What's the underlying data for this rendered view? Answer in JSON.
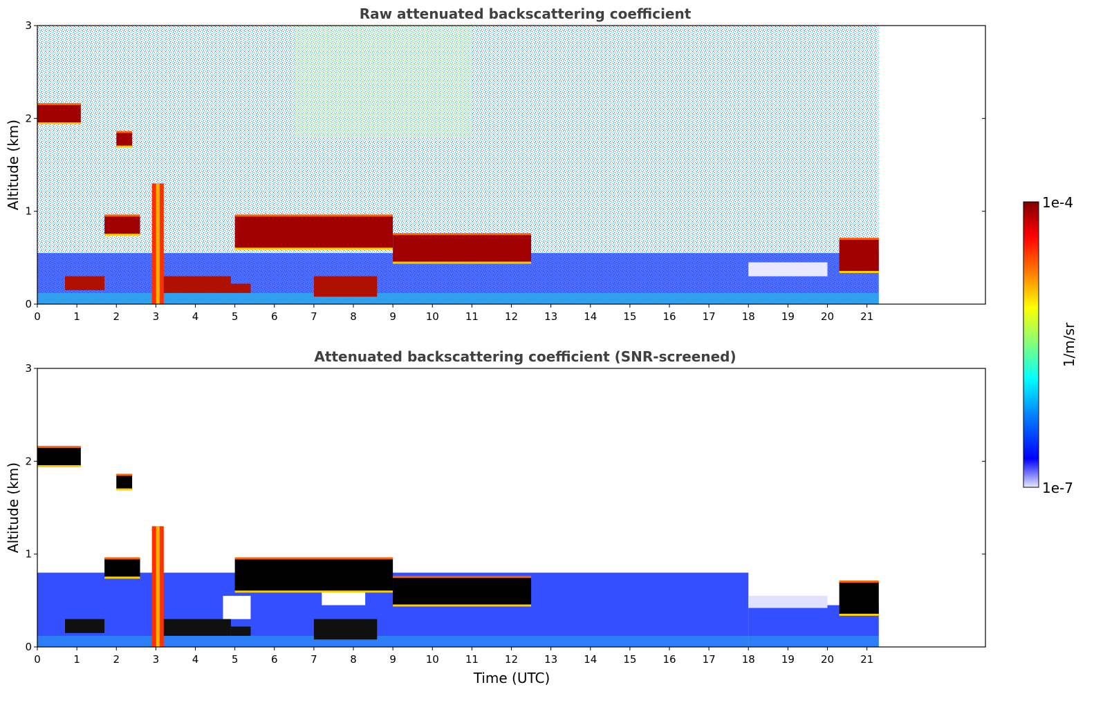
{
  "chart_data": [
    {
      "type": "heatmap",
      "title": "Raw attenuated backscattering coefficient",
      "xlabel": "",
      "ylabel": "Altitude (km)",
      "xlim": [
        0,
        24
      ],
      "ylim": [
        0,
        3
      ],
      "data_extent_x": [
        0,
        21.3
      ],
      "xticks": [
        "0",
        "1",
        "2",
        "3",
        "4",
        "5",
        "6",
        "7",
        "8",
        "9",
        "10",
        "11",
        "12",
        "13",
        "14",
        "15",
        "16",
        "17",
        "18",
        "19",
        "20",
        "21"
      ],
      "yticks": [
        "0",
        "1",
        "2",
        "3"
      ],
      "cloud_layers": [
        {
          "t0": 0.0,
          "t1": 1.1,
          "base_km": 1.95,
          "top_km": 2.15
        },
        {
          "t0": 2.0,
          "t1": 2.4,
          "base_km": 1.7,
          "top_km": 1.85
        },
        {
          "t0": 1.7,
          "t1": 2.6,
          "base_km": 0.75,
          "top_km": 0.95
        },
        {
          "t0": 2.9,
          "t1": 3.2,
          "base_km": 0.0,
          "top_km": 1.3
        },
        {
          "t0": 5.0,
          "t1": 9.0,
          "base_km": 0.6,
          "top_km": 0.95
        },
        {
          "t0": 9.0,
          "t1": 12.5,
          "base_km": 0.45,
          "top_km": 0.75
        },
        {
          "t0": 20.3,
          "t1": 21.3,
          "base_km": 0.35,
          "top_km": 0.7
        }
      ]
    },
    {
      "type": "heatmap",
      "title": "Attenuated backscattering coefficient (SNR-screened)",
      "xlabel": "Time (UTC)",
      "ylabel": "Altitude (km)",
      "xlim": [
        0,
        24
      ],
      "ylim": [
        0,
        3
      ],
      "data_extent_x": [
        0,
        21.3
      ],
      "xticks": [
        "0",
        "1",
        "2",
        "3",
        "4",
        "5",
        "6",
        "7",
        "8",
        "9",
        "10",
        "11",
        "12",
        "13",
        "14",
        "15",
        "16",
        "17",
        "18",
        "19",
        "20",
        "21"
      ],
      "yticks": [
        "0",
        "1",
        "2",
        "3"
      ],
      "cloud_layers": [
        {
          "t0": 0.0,
          "t1": 1.1,
          "base_km": 1.95,
          "top_km": 2.15
        },
        {
          "t0": 2.0,
          "t1": 2.4,
          "base_km": 1.7,
          "top_km": 1.85
        },
        {
          "t0": 1.7,
          "t1": 2.6,
          "base_km": 0.75,
          "top_km": 0.95
        },
        {
          "t0": 2.9,
          "t1": 3.2,
          "base_km": 0.0,
          "top_km": 1.3
        },
        {
          "t0": 5.0,
          "t1": 9.0,
          "base_km": 0.6,
          "top_km": 0.95
        },
        {
          "t0": 9.0,
          "t1": 12.5,
          "base_km": 0.45,
          "top_km": 0.75
        },
        {
          "t0": 20.3,
          "t1": 21.3,
          "base_km": 0.35,
          "top_km": 0.7
        }
      ]
    }
  ],
  "colorbar": {
    "label": "1/m/sr",
    "max_label": "1e-4",
    "min_label": "1e-7",
    "colormap": "jet",
    "scale": "log",
    "stops": [
      "#7f0000",
      "#ff0000",
      "#ff7f00",
      "#ffff00",
      "#7fff7f",
      "#00ffff",
      "#007fff",
      "#0000ff",
      "#e8e8ff"
    ]
  }
}
